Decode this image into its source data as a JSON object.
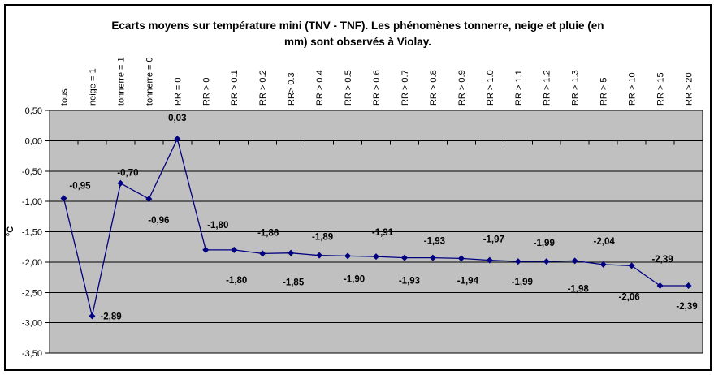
{
  "title": {
    "line1": "Ecarts moyens sur température mini (TNV - TNF). Les phénomènes tonnerre, neige et pluie (en",
    "line2": "mm) sont observés à Violay."
  },
  "chart_data": {
    "type": "line",
    "title": "Ecarts moyens sur température mini (TNV - TNF). Les phénomènes tonnerre, neige et pluie (en mm) sont observés à Violay.",
    "xlabel": "",
    "ylabel": "°C",
    "ylim": [
      -3.5,
      0.5
    ],
    "ytick_step": 0.5,
    "y_tick_labels": [
      "0,50",
      "0,00",
      "-0,50",
      "-1,00",
      "-1,50",
      "-2,00",
      "-2,50",
      "-3,00",
      "-3,50"
    ],
    "grid": true,
    "legend": false,
    "plot_bg": "#C0C0C0",
    "line_color": "#000080",
    "marker": "diamond",
    "categories": [
      "tous",
      "neige = 1",
      "tonnerre = 1",
      "tonnerre = 0",
      "RR = 0",
      "RR > 0",
      "RR > 0.1",
      "RR > 0.2",
      "RR> 0.3",
      "RR > 0.4",
      "RR > 0.5",
      "RR > 0.6",
      "RR > 0.7",
      "RR > 0.8",
      "RR > 0.9",
      "RR > 1.0",
      "RR > 1.1",
      "RR > 1.2",
      "RR > 1.3",
      "RR > 5",
      "RR > 10",
      "RR > 15",
      "RR > 20"
    ],
    "values": [
      -0.95,
      -2.89,
      -0.7,
      -0.96,
      0.03,
      -1.8,
      -1.8,
      -1.86,
      -1.85,
      -1.89,
      -1.9,
      -1.91,
      -1.93,
      -1.93,
      -1.94,
      -1.97,
      -1.99,
      -1.99,
      -1.98,
      -2.04,
      -2.06,
      -2.39,
      -2.39
    ],
    "point_labels": [
      "-0,95",
      "-2,89",
      "-0,70",
      "-0,96",
      "0,03",
      "-1,80",
      "-1,80",
      "-1,86",
      "-1,85",
      "-1,89",
      "-1,90",
      "-1,91",
      "-1,93",
      "-1,93",
      "-1,94",
      "-1,97",
      "-1,99",
      "-1,99",
      "-1,98",
      "-2,04",
      "-2,06",
      "-2,39",
      "-2,39"
    ],
    "label_placement": [
      "above",
      "right",
      "above",
      "below",
      "above",
      "above",
      "below",
      "above",
      "below",
      "above",
      "below",
      "above",
      "below",
      "above",
      "below",
      "above",
      "below",
      "above",
      "below",
      "above",
      "below",
      "above",
      "below"
    ],
    "label_dx": [
      20,
      0,
      9,
      12,
      0,
      15,
      3,
      7,
      3,
      4,
      8,
      8,
      6,
      2,
      8,
      5,
      5,
      -3,
      4,
      1,
      -3,
      3,
      -2
    ],
    "label_dy": [
      10,
      0,
      13,
      -6,
      0,
      -5,
      5,
      0,
      4,
      3,
      -4,
      -4,
      -4,
      5,
      -5,
      0,
      -7,
      3,
      2,
      -3,
      6,
      -7,
      -7
    ]
  }
}
